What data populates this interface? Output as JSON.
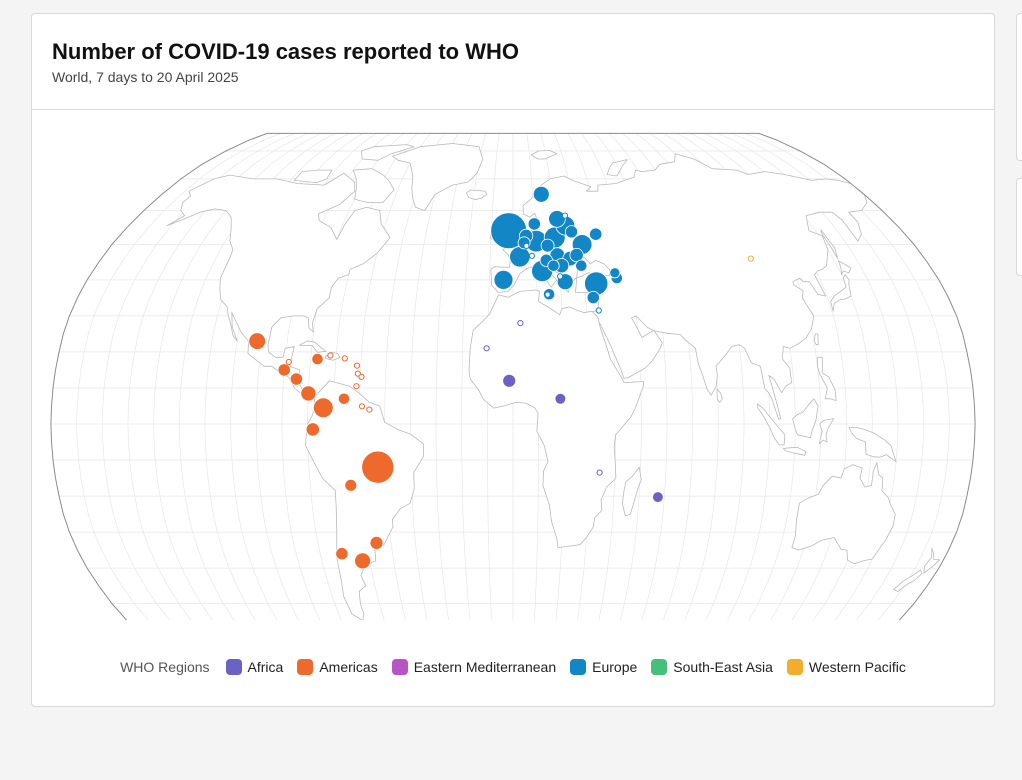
{
  "header": {
    "title": "Number of COVID-19 cases reported to WHO",
    "subtitle": "World, 7 days to 20 April 2025"
  },
  "legend": {
    "title": "WHO Regions",
    "items": [
      {
        "label": "Africa",
        "color": "#6b63c4"
      },
      {
        "label": "Americas",
        "color": "#ee6a2c"
      },
      {
        "label": "Eastern Mediterranean",
        "color": "#b954c4"
      },
      {
        "label": "Europe",
        "color": "#1386c6"
      },
      {
        "label": "South-East Asia",
        "color": "#45c07a"
      },
      {
        "label": "Western Pacific",
        "color": "#f2ad2f"
      }
    ]
  },
  "chart_data": {
    "type": "bubble-map",
    "projection": "robinson",
    "title": "Number of COVID-19 cases reported to WHO",
    "subtitle": "World, 7 days to 20 April 2025",
    "bubbles": [
      {
        "region": "Europe",
        "lon": -2,
        "lat": 54,
        "size": 1.0
      },
      {
        "region": "Europe",
        "lon": 3,
        "lat": 46.5,
        "size": 0.32
      },
      {
        "region": "Europe",
        "lon": -4,
        "lat": 40,
        "size": 0.28
      },
      {
        "region": "Europe",
        "lon": 10.5,
        "lat": 51,
        "size": 0.36
      },
      {
        "region": "Europe",
        "lon": 19,
        "lat": 52,
        "size": 0.34
      },
      {
        "region": "Europe",
        "lon": 12.5,
        "lat": 42.5,
        "size": 0.35
      },
      {
        "region": "Europe",
        "lon": 35,
        "lat": 39,
        "size": 0.42
      },
      {
        "region": "Europe",
        "lon": 31,
        "lat": 50,
        "size": 0.3
      },
      {
        "region": "Europe",
        "lon": 24.5,
        "lat": 55.5,
        "size": 0.28
      },
      {
        "region": "Europe",
        "lon": 21,
        "lat": 57.5,
        "size": 0.22
      },
      {
        "region": "Europe",
        "lon": 14.5,
        "lat": 65,
        "size": 0.2
      },
      {
        "region": "Europe",
        "lon": 6,
        "lat": 52.5,
        "size": 0.14
      },
      {
        "region": "Europe",
        "lon": 5,
        "lat": 50.5,
        "size": 0.11
      },
      {
        "region": "Europe",
        "lon": 15.5,
        "lat": 49.7,
        "size": 0.13
      },
      {
        "region": "Europe",
        "lon": 19.5,
        "lat": 47,
        "size": 0.17
      },
      {
        "region": "Europe",
        "lon": 25,
        "lat": 46,
        "size": 0.17
      },
      {
        "region": "Europe",
        "lon": 21,
        "lat": 44,
        "size": 0.16
      },
      {
        "region": "Europe",
        "lon": 28,
        "lat": 47,
        "size": 0.14
      },
      {
        "region": "Europe",
        "lon": 14.5,
        "lat": 45.5,
        "size": 0.12
      },
      {
        "region": "Europe",
        "lon": 17.5,
        "lat": 44,
        "size": 0.1
      },
      {
        "region": "Europe",
        "lon": 22,
        "lat": 39.5,
        "size": 0.2
      },
      {
        "region": "Europe",
        "lon": 15,
        "lat": 36,
        "size": 0.1
      },
      {
        "region": "Europe",
        "lon": 29.5,
        "lat": 44,
        "size": 0.1
      },
      {
        "region": "Europe",
        "lon": 44,
        "lat": 40.5,
        "size": 0.1
      },
      {
        "region": "Europe",
        "lon": 43.5,
        "lat": 42,
        "size": 0.08
      },
      {
        "region": "Europe",
        "lon": 38,
        "lat": 53,
        "size": 0.12
      },
      {
        "region": "Europe",
        "lon": 27,
        "lat": 53.7,
        "size": 0.12
      },
      {
        "region": "Europe",
        "lon": 10,
        "lat": 56,
        "size": 0.12
      },
      {
        "region": "Europe",
        "lon": 33.2,
        "lat": 35.1,
        "size": 0.12
      },
      {
        "region": "Europe",
        "lon": 25,
        "lat": 58.5,
        "size": 0.08,
        "hollow": true
      },
      {
        "region": "Europe",
        "lon": 8.3,
        "lat": 46.8,
        "size": 0.08,
        "hollow": true
      },
      {
        "region": "Europe",
        "lon": 20,
        "lat": 41,
        "size": 0.08,
        "hollow": true
      },
      {
        "region": "Europe",
        "lon": 35,
        "lat": 31.5,
        "size": 0.08,
        "hollow": true
      },
      {
        "region": "Europe",
        "lon": 6,
        "lat": 49.6,
        "size": 0.06,
        "hollow": true
      },
      {
        "region": "Europe",
        "lon": 14.4,
        "lat": 35.9,
        "size": 0.06,
        "hollow": true
      },
      {
        "region": "Americas",
        "lon": -53,
        "lat": -12,
        "size": 0.8
      },
      {
        "region": "Americas",
        "lon": -74,
        "lat": 4.5,
        "size": 0.3
      },
      {
        "region": "Americas",
        "lon": -102,
        "lat": 23,
        "size": 0.22
      },
      {
        "region": "Americas",
        "lon": -63,
        "lat": -38,
        "size": 0.2
      },
      {
        "region": "Americas",
        "lon": -80,
        "lat": 8.5,
        "size": 0.18
      },
      {
        "region": "Americas",
        "lon": -78,
        "lat": -1.5,
        "size": 0.14
      },
      {
        "region": "Americas",
        "lon": -90,
        "lat": 15,
        "size": 0.12
      },
      {
        "region": "Americas",
        "lon": -85,
        "lat": 12.5,
        "size": 0.12
      },
      {
        "region": "Americas",
        "lon": -56,
        "lat": -33,
        "size": 0.13
      },
      {
        "region": "Americas",
        "lon": -71,
        "lat": -36,
        "size": 0.12
      },
      {
        "region": "Americas",
        "lon": -64,
        "lat": -17,
        "size": 0.11
      },
      {
        "region": "Americas",
        "lon": -66,
        "lat": 7,
        "size": 0.1
      },
      {
        "region": "Americas",
        "lon": -77.3,
        "lat": 18,
        "size": 0.1
      },
      {
        "region": "Americas",
        "lon": -88.5,
        "lat": 17.2,
        "size": 0.08,
        "hollow": true
      },
      {
        "region": "Americas",
        "lon": -66.5,
        "lat": 18.2,
        "size": 0.08,
        "hollow": true
      },
      {
        "region": "Americas",
        "lon": -61.5,
        "lat": 16.2,
        "size": 0.08,
        "hollow": true
      },
      {
        "region": "Americas",
        "lon": -61,
        "lat": 14,
        "size": 0.08,
        "hollow": true
      },
      {
        "region": "Americas",
        "lon": -61.3,
        "lat": 10.5,
        "size": 0.08,
        "hollow": true
      },
      {
        "region": "Americas",
        "lon": -59.5,
        "lat": 13.1,
        "size": 0.08,
        "hollow": true
      },
      {
        "region": "Americas",
        "lon": -72.3,
        "lat": 19,
        "size": 0.08,
        "hollow": true
      },
      {
        "region": "Americas",
        "lon": -58.9,
        "lat": 4.9,
        "size": 0.08,
        "hollow": true
      },
      {
        "region": "Americas",
        "lon": -56,
        "lat": 4,
        "size": 0.06,
        "hollow": true
      },
      {
        "region": "Africa",
        "lon": -1.5,
        "lat": 12,
        "size": 0.13
      },
      {
        "region": "Africa",
        "lon": 18.5,
        "lat": 7,
        "size": 0.09
      },
      {
        "region": "Africa",
        "lon": 57.5,
        "lat": -20.3,
        "size": 0.09
      },
      {
        "region": "Africa",
        "lon": 3,
        "lat": 28,
        "size": 0.08,
        "hollow": true
      },
      {
        "region": "Africa",
        "lon": -10.5,
        "lat": 21,
        "size": 0.08,
        "hollow": true
      },
      {
        "region": "Africa",
        "lon": 34,
        "lat": -13.5,
        "size": 0.08,
        "hollow": true
      },
      {
        "region": "Western Pacific",
        "lon": 104,
        "lat": 46,
        "size": 0.08,
        "hollow": true
      }
    ]
  }
}
